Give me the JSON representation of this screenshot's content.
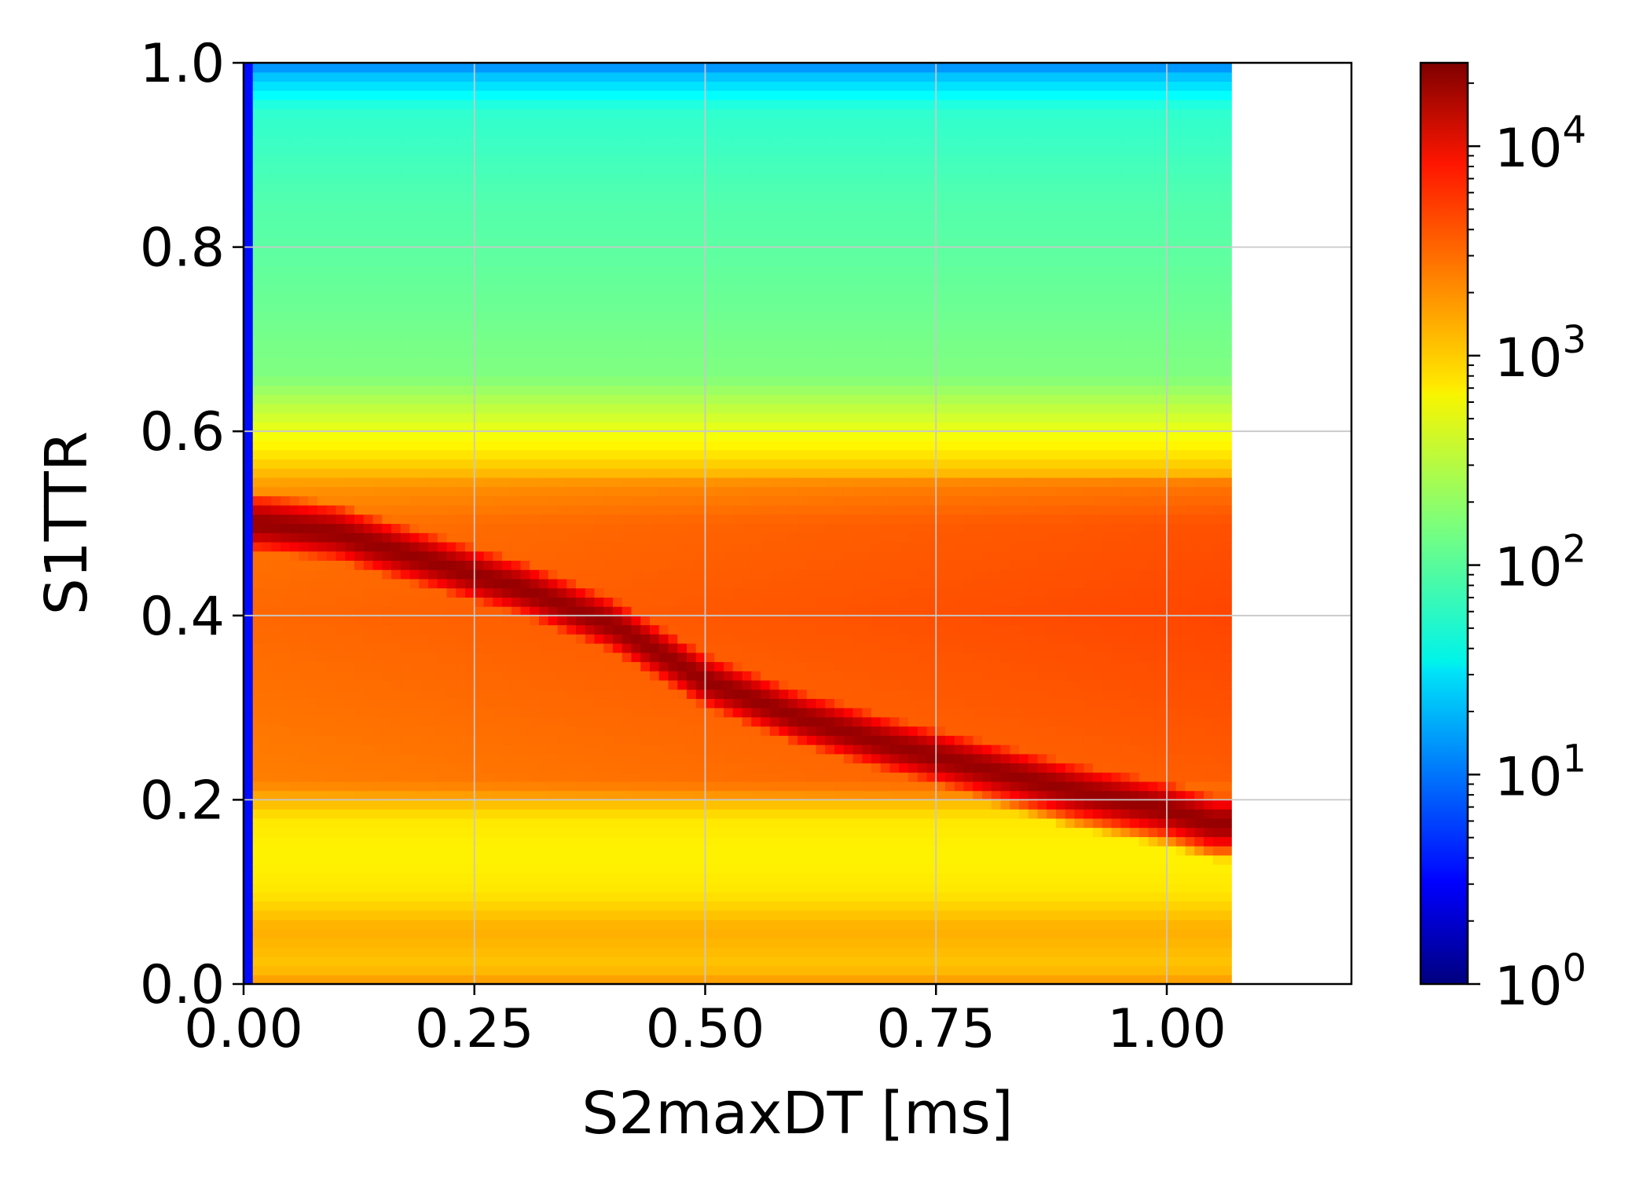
{
  "chart_data": {
    "type": "heatmap",
    "title": "",
    "xlabel": "S2maxDT [ms]",
    "ylabel": "S1TTR",
    "xlim": [
      0.0,
      1.2
    ],
    "ylim": [
      0.0,
      1.0
    ],
    "data_x_extent": [
      0.0,
      1.07
    ],
    "x_ticks": [
      "0.00",
      "0.25",
      "0.50",
      "0.75",
      "1.00"
    ],
    "x_tick_values": [
      0.0,
      0.25,
      0.5,
      0.75,
      1.0
    ],
    "y_ticks": [
      "0.0",
      "0.2",
      "0.4",
      "0.6",
      "0.8",
      "1.0"
    ],
    "y_tick_values": [
      0.0,
      0.2,
      0.4,
      0.6,
      0.8,
      1.0
    ],
    "grid": true,
    "colorbar": {
      "scale": "log",
      "range": [
        1,
        25000
      ],
      "colormap": "jet",
      "tick_labels": [
        {
          "base": "10",
          "exp": "0",
          "value": 1
        },
        {
          "base": "10",
          "exp": "1",
          "value": 10
        },
        {
          "base": "10",
          "exp": "2",
          "value": 100
        },
        {
          "base": "10",
          "exp": "3",
          "value": 1000
        },
        {
          "base": "10",
          "exp": "4",
          "value": 10000
        }
      ]
    },
    "ridge": {
      "x": [
        0.02,
        0.1,
        0.2,
        0.3,
        0.4,
        0.5,
        0.6,
        0.7,
        0.8,
        0.9,
        1.0,
        1.05
      ],
      "y": [
        0.5,
        0.49,
        0.46,
        0.43,
        0.39,
        0.33,
        0.29,
        0.26,
        0.235,
        0.21,
        0.19,
        0.175
      ],
      "peak_count": 20000
    },
    "bands": [
      {
        "range": [
          0.55,
          0.63
        ],
        "description_count": 700
      },
      {
        "range": [
          0.2,
          0.55
        ],
        "description_count": 2500
      },
      {
        "range": [
          0.1,
          0.17
        ],
        "description_count": 600
      },
      {
        "range": [
          0.0,
          0.1
        ],
        "description_count": 1500
      },
      {
        "range": [
          0.63,
          1.0
        ],
        "description_count": 100
      }
    ]
  }
}
